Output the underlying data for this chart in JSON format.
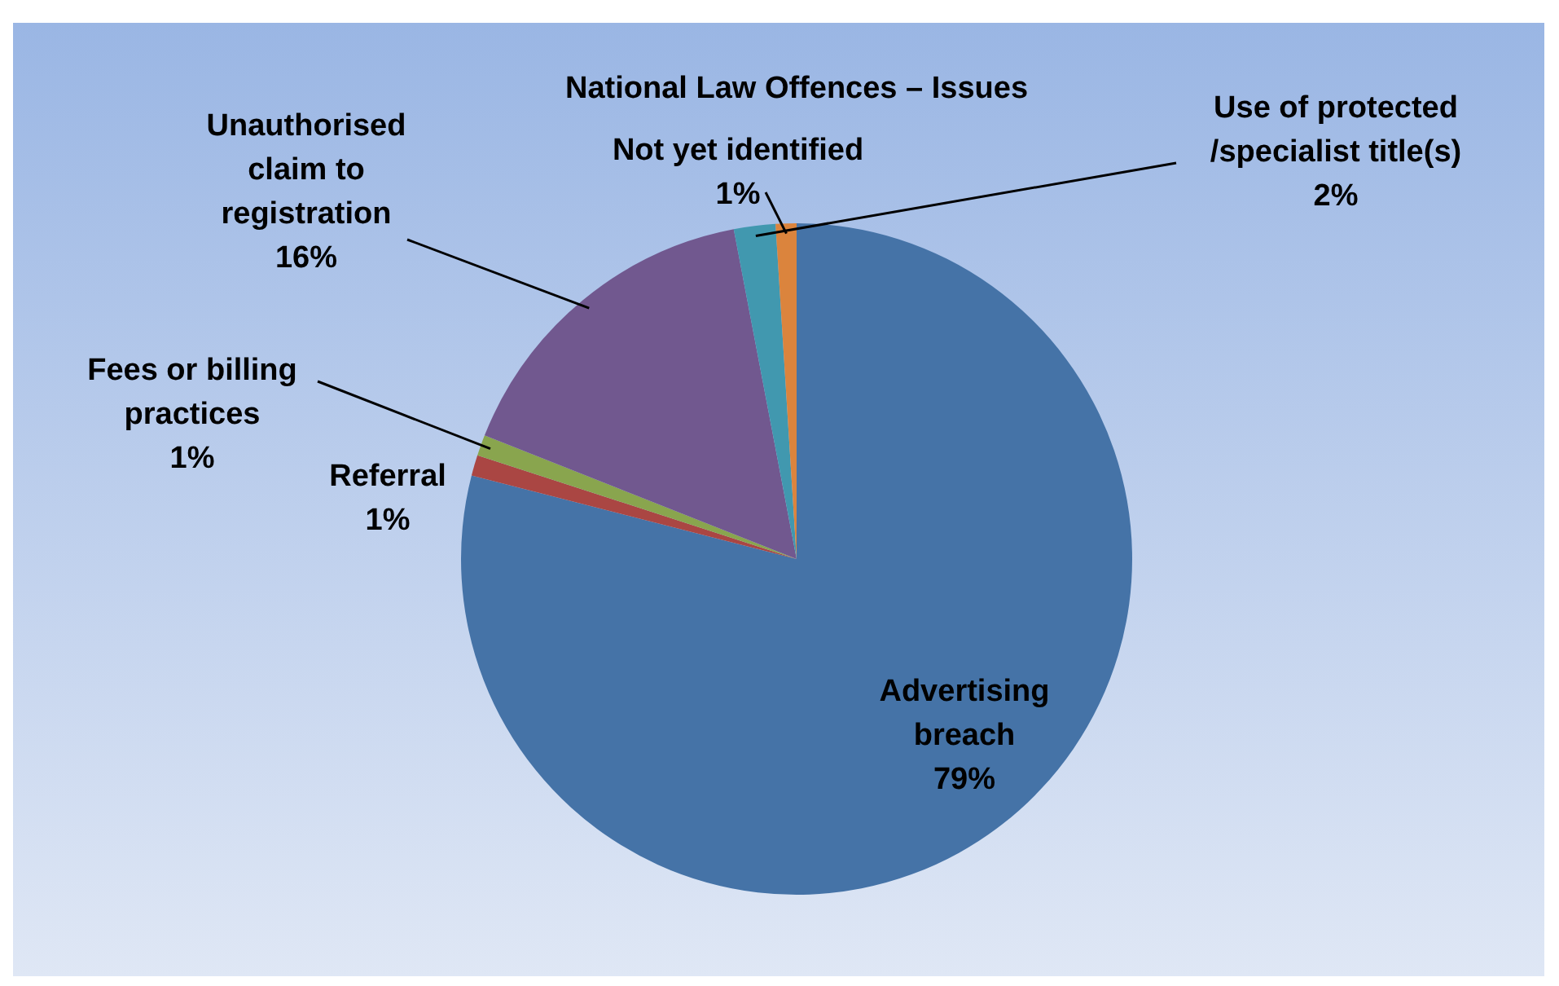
{
  "chart_data": {
    "type": "pie",
    "title": "National Law Offences – Issues",
    "categories": [
      "Advertising breach",
      "Referral",
      "Fees or billing practices",
      "Unauthorised claim to registration",
      "Use of protected /specialist title(s)",
      "Not yet identified"
    ],
    "values": [
      79,
      1,
      1,
      16,
      2,
      1
    ],
    "colors": [
      "#4573a7",
      "#aa4643",
      "#89a54e",
      "#71588f",
      "#4198af",
      "#db843d"
    ],
    "value_labels": [
      "79%",
      "1%",
      "1%",
      "16%",
      "2%",
      "1%"
    ],
    "legend": false
  }
}
